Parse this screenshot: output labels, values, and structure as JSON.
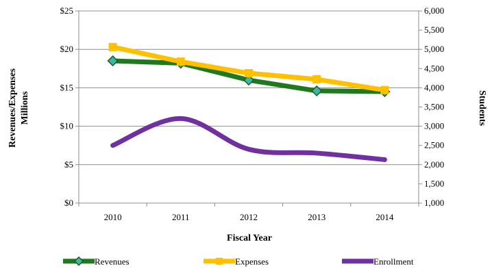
{
  "chart_data": {
    "type": "line",
    "categories": [
      "2010",
      "2011",
      "2012",
      "2013",
      "2014"
    ],
    "xlabel": "Fiscal Year",
    "ylabel_lines": [
      "Revenues/Expenses",
      "Millions"
    ],
    "y2label": "Students",
    "ylim": [
      0,
      25
    ],
    "y_ticks": [
      "$0",
      "$5",
      "$10",
      "$15",
      "$20",
      "$25"
    ],
    "y2lim": [
      1000,
      6000
    ],
    "y2_ticks": [
      "1,000",
      "1,500",
      "2,000",
      "2,500",
      "3,000",
      "3,500",
      "4,000",
      "4,500",
      "5,000",
      "5,500",
      "6,000"
    ],
    "grid": true,
    "legend_position": "bottom",
    "series": [
      {
        "name": "Revenues",
        "axis": "left",
        "values": [
          18.5,
          18.2,
          16.0,
          14.6,
          14.5
        ],
        "color": "#1f7a1f",
        "marker": "diamond",
        "marker_color": "#3cb6a5"
      },
      {
        "name": "Expenses",
        "axis": "left",
        "values": [
          20.3,
          18.4,
          16.9,
          16.1,
          14.7
        ],
        "color": "#ffc000",
        "marker": "square",
        "marker_color": "#ffc000"
      },
      {
        "name": "Enrollment",
        "axis": "right",
        "values": [
          2500,
          3200,
          2400,
          2300,
          2130
        ],
        "color": "#7030a0",
        "marker": "none",
        "smooth": true
      }
    ]
  }
}
